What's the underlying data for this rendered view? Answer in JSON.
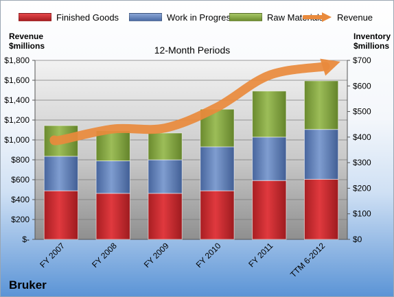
{
  "chart_data": {
    "type": "bar",
    "stacked": true,
    "title": "12-Month Periods",
    "categories": [
      "FY 2007",
      "FY 2008",
      "FY 2009",
      "FY 2010",
      "FY 2011",
      "TTM 6-2012"
    ],
    "series": [
      {
        "name": "Finished Goods",
        "axis": "right",
        "color": "#c0282d",
        "values": [
          190,
          180,
          180,
          190,
          230,
          235
        ]
      },
      {
        "name": "Work in Progress",
        "axis": "right",
        "color": "#5c7fb8",
        "values": [
          135,
          127,
          131,
          172,
          170,
          195
        ]
      },
      {
        "name": "Raw Materials",
        "axis": "right",
        "color": "#82a440",
        "values": [
          120,
          118,
          105,
          147,
          180,
          190
        ]
      },
      {
        "name": "Revenue",
        "axis": "left",
        "type": "line",
        "color": "#e98a3c",
        "values": [
          1000,
          1110,
          1120,
          1330,
          1650,
          1720
        ]
      }
    ],
    "y_left": {
      "label": "Revenue $millions",
      "ylim": [
        0,
        1800
      ],
      "ticks": [
        "$-",
        "$200",
        "$400",
        "$600",
        "$800",
        "$1,000",
        "$1,200",
        "$1,400",
        "$1,600",
        "$1,800"
      ]
    },
    "y_right": {
      "label": "Inventory $millions",
      "ylim": [
        0,
        700
      ],
      "ticks": [
        "$0",
        "$100",
        "$200",
        "$300",
        "$400",
        "$500",
        "$600",
        "$700"
      ]
    },
    "legend_position": "top",
    "grid": true
  },
  "labels": {
    "left_axis_title": [
      "Revenue",
      "$millions"
    ],
    "right_axis_title": [
      "Inventory",
      "$millions"
    ],
    "company": "Bruker"
  }
}
